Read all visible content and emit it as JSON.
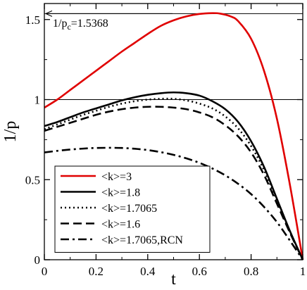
{
  "chart_data": {
    "type": "line",
    "xlabel": "t",
    "ylabel": "1/p",
    "xlim": [
      0,
      1
    ],
    "ylim": [
      0,
      1.6
    ],
    "x_ticks": [
      "0",
      "0.2",
      "0.4",
      "0.6",
      "0.8",
      "1"
    ],
    "y_ticks": [
      "0",
      "0.5",
      "1",
      "1.5"
    ],
    "x_tick_values": [
      0,
      0.2,
      0.4,
      0.6,
      0.8,
      1
    ],
    "y_tick_values": [
      0,
      0.5,
      1,
      1.5
    ],
    "legend_position": "bottom-left",
    "grid": false,
    "reference_lines": [
      {
        "y": 1.0,
        "color": "#000000"
      },
      {
        "y": 1.5368,
        "color": "#000000"
      }
    ],
    "annotation": {
      "text_main": "1/p",
      "text_sub": "c",
      "text_value": "=1.5368",
      "arrow_to": {
        "x": 0,
        "y": 1.5368
      }
    },
    "series": [
      {
        "name": "<k>=3",
        "color": "#e00000",
        "dash": "solid",
        "x": [
          0,
          0.05,
          0.1,
          0.15,
          0.2,
          0.25,
          0.3,
          0.35,
          0.4,
          0.45,
          0.5,
          0.55,
          0.6,
          0.65,
          0.68,
          0.72,
          0.75,
          0.8,
          0.85,
          0.9,
          0.95,
          1.0
        ],
        "y": [
          0.95,
          1.0,
          1.06,
          1.12,
          1.18,
          1.24,
          1.3,
          1.355,
          1.41,
          1.46,
          1.495,
          1.52,
          1.535,
          1.54,
          1.537,
          1.52,
          1.49,
          1.38,
          1.18,
          0.88,
          0.47,
          0.0
        ]
      },
      {
        "name": "<k>=1.8",
        "color": "#000000",
        "dash": "solid",
        "x": [
          0,
          0.05,
          0.1,
          0.15,
          0.2,
          0.25,
          0.3,
          0.35,
          0.4,
          0.45,
          0.5,
          0.55,
          0.6,
          0.65,
          0.7,
          0.75,
          0.8,
          0.85,
          0.9,
          0.95,
          1.0
        ],
        "y": [
          0.835,
          0.86,
          0.89,
          0.92,
          0.945,
          0.97,
          0.995,
          1.015,
          1.03,
          1.04,
          1.045,
          1.04,
          1.025,
          0.99,
          0.94,
          0.86,
          0.74,
          0.58,
          0.38,
          0.18,
          0.0
        ]
      },
      {
        "name": "<k>=1.7065",
        "color": "#000000",
        "dash": "dot",
        "x": [
          0,
          0.05,
          0.1,
          0.15,
          0.2,
          0.25,
          0.3,
          0.35,
          0.4,
          0.45,
          0.5,
          0.55,
          0.6,
          0.65,
          0.7,
          0.75,
          0.8,
          0.85,
          0.9,
          0.95,
          1.0
        ],
        "y": [
          0.815,
          0.845,
          0.875,
          0.905,
          0.93,
          0.955,
          0.975,
          0.99,
          1.0,
          1.005,
          1.005,
          0.995,
          0.975,
          0.945,
          0.895,
          0.82,
          0.71,
          0.56,
          0.37,
          0.175,
          0.0
        ]
      },
      {
        "name": "<k>=1.6",
        "color": "#000000",
        "dash": "dash",
        "x": [
          0,
          0.05,
          0.1,
          0.15,
          0.2,
          0.25,
          0.3,
          0.35,
          0.4,
          0.45,
          0.5,
          0.55,
          0.6,
          0.65,
          0.7,
          0.75,
          0.8,
          0.85,
          0.9,
          0.95,
          1.0
        ],
        "y": [
          0.805,
          0.83,
          0.855,
          0.88,
          0.905,
          0.925,
          0.94,
          0.95,
          0.955,
          0.955,
          0.95,
          0.94,
          0.92,
          0.89,
          0.84,
          0.77,
          0.67,
          0.53,
          0.35,
          0.17,
          0.0
        ]
      },
      {
        "name": "<k>=1.7065,RCN",
        "color": "#000000",
        "dash": "dashdot",
        "x": [
          0,
          0.05,
          0.1,
          0.15,
          0.2,
          0.25,
          0.3,
          0.35,
          0.4,
          0.45,
          0.5,
          0.55,
          0.6,
          0.65,
          0.7,
          0.75,
          0.8,
          0.85,
          0.9,
          0.95,
          1.0
        ],
        "y": [
          0.67,
          0.68,
          0.688,
          0.694,
          0.698,
          0.699,
          0.698,
          0.693,
          0.685,
          0.672,
          0.655,
          0.633,
          0.605,
          0.57,
          0.527,
          0.474,
          0.41,
          0.33,
          0.235,
          0.12,
          0.0
        ]
      }
    ]
  }
}
